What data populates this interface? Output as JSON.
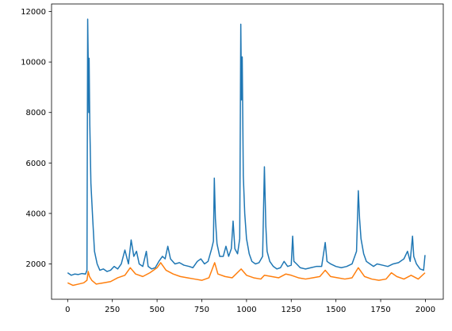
{
  "chart_data": {
    "type": "line",
    "title": "",
    "xlabel": "",
    "ylabel": "",
    "xlim": [
      -90,
      2100
    ],
    "ylim": [
      600,
      12300
    ],
    "xticks": [
      0,
      250,
      500,
      750,
      1000,
      1250,
      1500,
      1750,
      2000
    ],
    "yticks": [
      2000,
      4000,
      6000,
      8000,
      10000,
      12000
    ],
    "grid": false,
    "legend": "none",
    "series": [
      {
        "color": "#1f77b4",
        "points": [
          [
            0,
            1650
          ],
          [
            20,
            1550
          ],
          [
            40,
            1600
          ],
          [
            60,
            1580
          ],
          [
            80,
            1620
          ],
          [
            100,
            1600
          ],
          [
            108,
            1750
          ],
          [
            112,
            11700
          ],
          [
            116,
            9500
          ],
          [
            118,
            8000
          ],
          [
            120,
            10150
          ],
          [
            124,
            7500
          ],
          [
            130,
            5200
          ],
          [
            140,
            3800
          ],
          [
            150,
            2500
          ],
          [
            165,
            2000
          ],
          [
            180,
            1750
          ],
          [
            200,
            1800
          ],
          [
            220,
            1700
          ],
          [
            240,
            1750
          ],
          [
            260,
            1900
          ],
          [
            280,
            1800
          ],
          [
            300,
            2000
          ],
          [
            320,
            2550
          ],
          [
            340,
            2000
          ],
          [
            355,
            2950
          ],
          [
            370,
            2300
          ],
          [
            385,
            2500
          ],
          [
            400,
            2000
          ],
          [
            420,
            1900
          ],
          [
            440,
            2500
          ],
          [
            450,
            1900
          ],
          [
            470,
            1800
          ],
          [
            490,
            1850
          ],
          [
            510,
            2100
          ],
          [
            530,
            2300
          ],
          [
            545,
            2200
          ],
          [
            560,
            2700
          ],
          [
            575,
            2200
          ],
          [
            600,
            2000
          ],
          [
            625,
            2050
          ],
          [
            650,
            1950
          ],
          [
            680,
            1900
          ],
          [
            700,
            1850
          ],
          [
            725,
            2100
          ],
          [
            745,
            2200
          ],
          [
            765,
            2000
          ],
          [
            785,
            2100
          ],
          [
            805,
            2600
          ],
          [
            815,
            2900
          ],
          [
            820,
            5400
          ],
          [
            826,
            3800
          ],
          [
            835,
            2800
          ],
          [
            850,
            2300
          ],
          [
            870,
            2300
          ],
          [
            885,
            2700
          ],
          [
            900,
            2300
          ],
          [
            915,
            2600
          ],
          [
            925,
            3700
          ],
          [
            935,
            2600
          ],
          [
            950,
            2400
          ],
          [
            962,
            3000
          ],
          [
            968,
            11500
          ],
          [
            972,
            8500
          ],
          [
            976,
            10200
          ],
          [
            982,
            5500
          ],
          [
            990,
            4000
          ],
          [
            1000,
            3000
          ],
          [
            1015,
            2400
          ],
          [
            1030,
            2100
          ],
          [
            1050,
            2000
          ],
          [
            1070,
            2050
          ],
          [
            1090,
            2300
          ],
          [
            1100,
            5850
          ],
          [
            1108,
            3500
          ],
          [
            1115,
            2500
          ],
          [
            1130,
            2100
          ],
          [
            1150,
            1900
          ],
          [
            1170,
            1800
          ],
          [
            1190,
            1850
          ],
          [
            1210,
            2100
          ],
          [
            1230,
            1900
          ],
          [
            1250,
            1950
          ],
          [
            1258,
            3100
          ],
          [
            1265,
            2100
          ],
          [
            1280,
            2000
          ],
          [
            1300,
            1850
          ],
          [
            1330,
            1800
          ],
          [
            1360,
            1850
          ],
          [
            1390,
            1900
          ],
          [
            1420,
            1900
          ],
          [
            1440,
            2850
          ],
          [
            1450,
            2100
          ],
          [
            1470,
            2000
          ],
          [
            1500,
            1900
          ],
          [
            1530,
            1850
          ],
          [
            1560,
            1900
          ],
          [
            1590,
            2000
          ],
          [
            1615,
            2500
          ],
          [
            1625,
            4900
          ],
          [
            1632,
            3800
          ],
          [
            1640,
            3000
          ],
          [
            1655,
            2400
          ],
          [
            1670,
            2100
          ],
          [
            1690,
            2000
          ],
          [
            1710,
            1900
          ],
          [
            1730,
            2000
          ],
          [
            1760,
            1950
          ],
          [
            1790,
            1900
          ],
          [
            1820,
            2000
          ],
          [
            1850,
            2050
          ],
          [
            1880,
            2200
          ],
          [
            1900,
            2500
          ],
          [
            1915,
            2100
          ],
          [
            1928,
            3100
          ],
          [
            1935,
            2300
          ],
          [
            1950,
            2000
          ],
          [
            1970,
            1800
          ],
          [
            1990,
            1750
          ],
          [
            1998,
            2350
          ]
        ]
      },
      {
        "color": "#ff7f0e",
        "points": [
          [
            0,
            1250
          ],
          [
            30,
            1150
          ],
          [
            60,
            1200
          ],
          [
            90,
            1250
          ],
          [
            108,
            1350
          ],
          [
            115,
            1700
          ],
          [
            122,
            1500
          ],
          [
            135,
            1350
          ],
          [
            160,
            1200
          ],
          [
            200,
            1250
          ],
          [
            240,
            1300
          ],
          [
            280,
            1450
          ],
          [
            320,
            1550
          ],
          [
            350,
            1850
          ],
          [
            380,
            1600
          ],
          [
            420,
            1500
          ],
          [
            460,
            1650
          ],
          [
            500,
            1850
          ],
          [
            520,
            2050
          ],
          [
            550,
            1750
          ],
          [
            590,
            1600
          ],
          [
            630,
            1500
          ],
          [
            670,
            1450
          ],
          [
            710,
            1400
          ],
          [
            750,
            1350
          ],
          [
            790,
            1450
          ],
          [
            822,
            2050
          ],
          [
            840,
            1600
          ],
          [
            880,
            1500
          ],
          [
            920,
            1450
          ],
          [
            970,
            1800
          ],
          [
            1000,
            1550
          ],
          [
            1040,
            1450
          ],
          [
            1080,
            1400
          ],
          [
            1100,
            1550
          ],
          [
            1140,
            1500
          ],
          [
            1180,
            1450
          ],
          [
            1220,
            1600
          ],
          [
            1250,
            1550
          ],
          [
            1290,
            1450
          ],
          [
            1330,
            1400
          ],
          [
            1370,
            1450
          ],
          [
            1410,
            1500
          ],
          [
            1440,
            1750
          ],
          [
            1470,
            1500
          ],
          [
            1510,
            1450
          ],
          [
            1550,
            1400
          ],
          [
            1590,
            1450
          ],
          [
            1625,
            1850
          ],
          [
            1660,
            1500
          ],
          [
            1700,
            1400
          ],
          [
            1740,
            1350
          ],
          [
            1780,
            1400
          ],
          [
            1810,
            1650
          ],
          [
            1840,
            1500
          ],
          [
            1880,
            1400
          ],
          [
            1920,
            1550
          ],
          [
            1960,
            1400
          ],
          [
            1998,
            1650
          ]
        ]
      }
    ]
  }
}
